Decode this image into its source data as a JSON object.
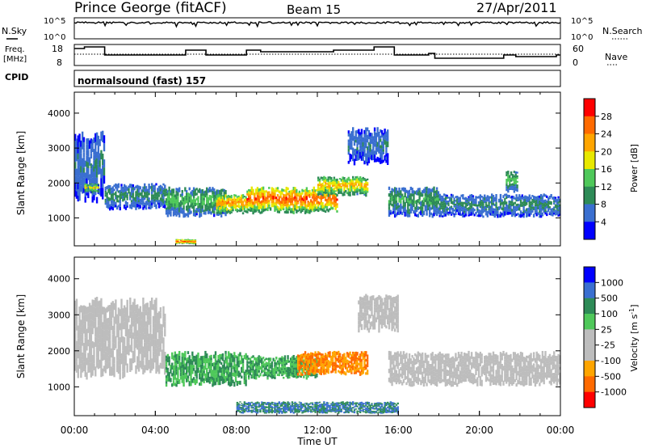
{
  "header": {
    "title": "Prince George (fitACF)",
    "beam": "Beam 15",
    "date": "27/Apr/2011"
  },
  "top_panels": {
    "nsky_label": "N.Sky",
    "nsearch_label": "N.Search",
    "noise_ticks_left": [
      "10^5",
      "10^0"
    ],
    "noise_ticks_right": [
      "10^5",
      "10^0"
    ],
    "freq_label_1": "Freq.",
    "freq_label_2": "[MHz]",
    "freq_ticks": [
      "18",
      "8"
    ],
    "nave_label": "Nave",
    "nave_ticks": [
      "60",
      "0"
    ],
    "cpid_label": "CPID",
    "cpid_text": "normalsound (fast) 157"
  },
  "colors": {
    "power_scale": [
      "#0000ff",
      "#3a6fd0",
      "#2e8b57",
      "#4fc85a",
      "#e8e800",
      "#ffa500",
      "#ff6a00",
      "#ff0000"
    ],
    "velocity_scale": [
      "#ff0000",
      "#ff6a00",
      "#ffa500",
      "#bdbdbd",
      "#bdbdbd",
      "#4fc85a",
      "#2e8b57",
      "#3a6fd0",
      "#0000ff"
    ],
    "ground_scatter": "#bdbdbd"
  },
  "chart_data": [
    {
      "type": "heatmap",
      "name": "power",
      "xlabel": "",
      "ylabel": "Slant Range [km]",
      "ylim": [
        200,
        4600
      ],
      "yticks": [
        "4000",
        "3000",
        "2000",
        "1000"
      ],
      "colorbar_label": "Power [dB]",
      "colorbar_ticks": [
        "28",
        "24",
        "20",
        "16",
        "12",
        "8",
        "4"
      ],
      "colorbar_range": [
        0,
        32
      ],
      "echo_regions": [
        {
          "t_start": 0.0,
          "t_end": 1.5,
          "range_low": 1400,
          "range_high": 3500,
          "power": 8
        },
        {
          "t_start": 0.5,
          "t_end": 1.2,
          "range_low": 1700,
          "range_high": 2000,
          "power": 20
        },
        {
          "t_start": 1.5,
          "t_end": 4.5,
          "range_low": 1200,
          "range_high": 2000,
          "power": 10
        },
        {
          "t_start": 4.5,
          "t_end": 7.5,
          "range_low": 1000,
          "range_high": 1900,
          "power": 14
        },
        {
          "t_start": 5.0,
          "t_end": 6.0,
          "range_low": 250,
          "range_high": 400,
          "power": 28
        },
        {
          "t_start": 7.0,
          "t_end": 8.5,
          "range_low": 1100,
          "range_high": 1700,
          "power": 24
        },
        {
          "t_start": 8.5,
          "t_end": 13.0,
          "range_low": 1100,
          "range_high": 1900,
          "power": 28
        },
        {
          "t_start": 12.0,
          "t_end": 14.5,
          "range_low": 1600,
          "range_high": 2200,
          "power": 22
        },
        {
          "t_start": 13.5,
          "t_end": 15.5,
          "range_low": 2500,
          "range_high": 3600,
          "power": 8
        },
        {
          "t_start": 15.5,
          "t_end": 18.0,
          "range_low": 1000,
          "range_high": 1900,
          "power": 12
        },
        {
          "t_start": 18.0,
          "t_end": 24.0,
          "range_low": 1000,
          "range_high": 1700,
          "power": 10
        },
        {
          "t_start": 21.3,
          "t_end": 21.9,
          "range_low": 1700,
          "range_high": 2400,
          "power": 14
        }
      ]
    },
    {
      "type": "heatmap",
      "name": "velocity",
      "xlabel": "Time UT",
      "ylabel": "Slant Range [km]",
      "ylim": [
        200,
        4600
      ],
      "yticks": [
        "4000",
        "3000",
        "2000",
        "1000"
      ],
      "xticks": [
        "00:00",
        "04:00",
        "08:00",
        "12:00",
        "16:00",
        "20:00",
        "00:00"
      ],
      "xlim": [
        0,
        24
      ],
      "colorbar_label": "Velocity [m s",
      "colorbar_label_sup": "-1",
      "colorbar_label_end": "]",
      "colorbar_ticks": [
        "1000",
        "500",
        "100",
        "25",
        "-25",
        "-100",
        "-500",
        "-1000"
      ],
      "echo_regions": [
        {
          "t_start": 0.0,
          "t_end": 4.5,
          "range_low": 1200,
          "range_high": 3500,
          "velocity": 0,
          "ground_scatter": true
        },
        {
          "t_start": 4.5,
          "t_end": 8.5,
          "range_low": 1000,
          "range_high": 2000,
          "velocity": 100
        },
        {
          "t_start": 8.5,
          "t_end": 12.0,
          "range_low": 1200,
          "range_high": 1900,
          "velocity": 100
        },
        {
          "t_start": 11.0,
          "t_end": 14.5,
          "range_low": 1300,
          "range_high": 2000,
          "velocity": -100
        },
        {
          "t_start": 14.0,
          "t_end": 16.0,
          "range_low": 2500,
          "range_high": 3600,
          "velocity": 0,
          "ground_scatter": true
        },
        {
          "t_start": 15.5,
          "t_end": 24.0,
          "range_low": 1000,
          "range_high": 2000,
          "velocity": 0,
          "ground_scatter": true
        },
        {
          "t_start": 8.0,
          "t_end": 16.0,
          "range_low": 250,
          "range_high": 600,
          "velocity": 500
        }
      ]
    }
  ]
}
